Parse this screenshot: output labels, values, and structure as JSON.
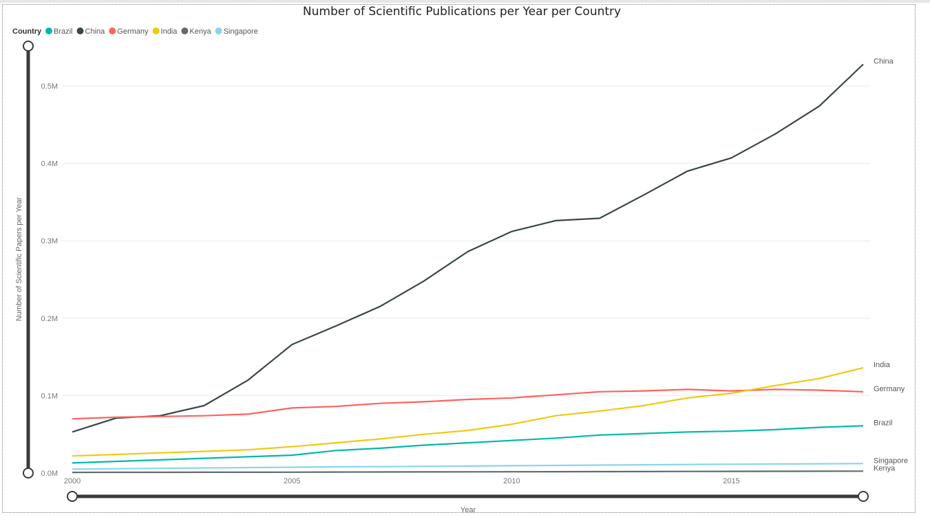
{
  "chart_data": {
    "type": "line",
    "title": "Number of Scientific Publications per Year per Country",
    "xlabel": "Year",
    "ylabel": "Number of Scientific Papers per Year",
    "legend_title": "Country",
    "legend_position": "top-left",
    "grid": true,
    "xlim": [
      2000,
      2018
    ],
    "ylim": [
      0,
      550000
    ],
    "x_ticks": [
      2000,
      2005,
      2010,
      2015
    ],
    "x_tick_labels": [
      "2000",
      "2005",
      "2010",
      "2015"
    ],
    "y_ticks": [
      0,
      100000,
      200000,
      300000,
      400000,
      500000
    ],
    "y_tick_labels": [
      "0.0M",
      "0.1M",
      "0.2M",
      "0.3M",
      "0.4M",
      "0.5M"
    ],
    "x": [
      2000,
      2001,
      2002,
      2003,
      2004,
      2005,
      2006,
      2007,
      2008,
      2009,
      2010,
      2011,
      2012,
      2013,
      2014,
      2015,
      2016,
      2017,
      2018
    ],
    "series": [
      {
        "name": "Brazil",
        "color": "#01B8AA",
        "values": [
          13000,
          15000,
          17000,
          19000,
          21000,
          23000,
          29000,
          32000,
          36000,
          39000,
          42000,
          45000,
          49000,
          51000,
          53000,
          54000,
          56000,
          59000,
          61000
        ]
      },
      {
        "name": "China",
        "color": "#374649",
        "values": [
          53000,
          71000,
          74000,
          87000,
          120000,
          166000,
          190000,
          215000,
          248000,
          286000,
          312000,
          326000,
          329000,
          359000,
          390000,
          407000,
          438000,
          474000,
          528000
        ]
      },
      {
        "name": "Germany",
        "color": "#FD625E",
        "values": [
          70000,
          72000,
          73000,
          74000,
          76000,
          84000,
          86000,
          90000,
          92000,
          95000,
          97000,
          101000,
          105000,
          106000,
          108000,
          106000,
          108000,
          107000,
          105000
        ]
      },
      {
        "name": "India",
        "color": "#F2C80F",
        "values": [
          22000,
          24000,
          26000,
          28000,
          30000,
          34000,
          39000,
          44000,
          50000,
          55000,
          63000,
          74000,
          80000,
          87000,
          97000,
          103000,
          113000,
          122000,
          136000
        ]
      },
      {
        "name": "Kenya",
        "color": "#5F6B6D",
        "values": [
          800,
          850,
          900,
          950,
          1000,
          1100,
          1200,
          1300,
          1400,
          1500,
          1600,
          1700,
          1800,
          1900,
          2000,
          2100,
          2200,
          2300,
          2400
        ]
      },
      {
        "name": "Singapore",
        "color": "#8AD4EB",
        "values": [
          5000,
          5500,
          6000,
          6500,
          7000,
          7500,
          8000,
          8200,
          8600,
          9000,
          9400,
          9800,
          10200,
          10600,
          11000,
          11300,
          11600,
          11900,
          12200
        ]
      }
    ]
  }
}
